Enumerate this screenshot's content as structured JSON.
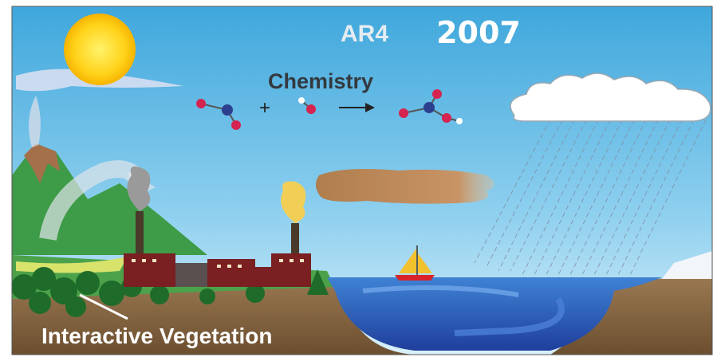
{
  "header": {
    "label": "AR4",
    "year": "2007"
  },
  "labels": {
    "chemistry": "Chemistry",
    "operator": "+",
    "vegetation": "Interactive Vegetation"
  }
}
